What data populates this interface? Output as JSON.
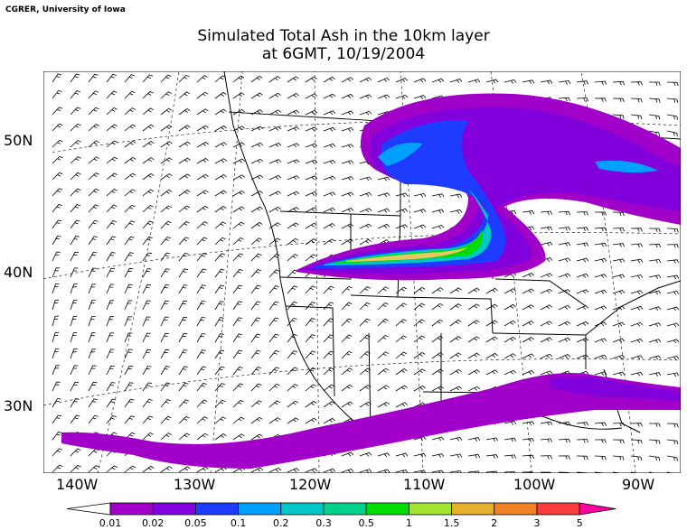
{
  "credit": "CGRER, University of Iowa",
  "title_line1": "Simulated Total Ash in the 10km layer",
  "title_line2": "at 6GMT, 10/19/2004",
  "map": {
    "lon_range": [
      -144,
      -85
    ],
    "lat_range": [
      25,
      55
    ],
    "lat_labels": [
      {
        "lat": 50,
        "text": "50N"
      },
      {
        "lat": 40,
        "text": "40N"
      },
      {
        "lat": 30,
        "text": "30N"
      }
    ],
    "lon_labels": [
      {
        "lon": -140,
        "text": "140W"
      },
      {
        "lon": -130,
        "text": "130W"
      },
      {
        "lon": -120,
        "text": "120W"
      },
      {
        "lon": -110,
        "text": "110W"
      },
      {
        "lon": -100,
        "text": "100W"
      },
      {
        "lon": -90,
        "text": "90W"
      }
    ],
    "grid_style": "dashed"
  },
  "colorbar": {
    "levels": [
      "0.01",
      "0.02",
      "0.05",
      "0.1",
      "0.2",
      "0.3",
      "0.5",
      "1",
      "1.5",
      "2",
      "3",
      "5"
    ],
    "colors": [
      "#a000c8",
      "#8200dc",
      "#1e3cff",
      "#00a0ff",
      "#00c8c8",
      "#00d28c",
      "#00dc00",
      "#a0e632",
      "#e6af2d",
      "#f08228",
      "#fa3c3c",
      "#ff00a0"
    ]
  }
}
